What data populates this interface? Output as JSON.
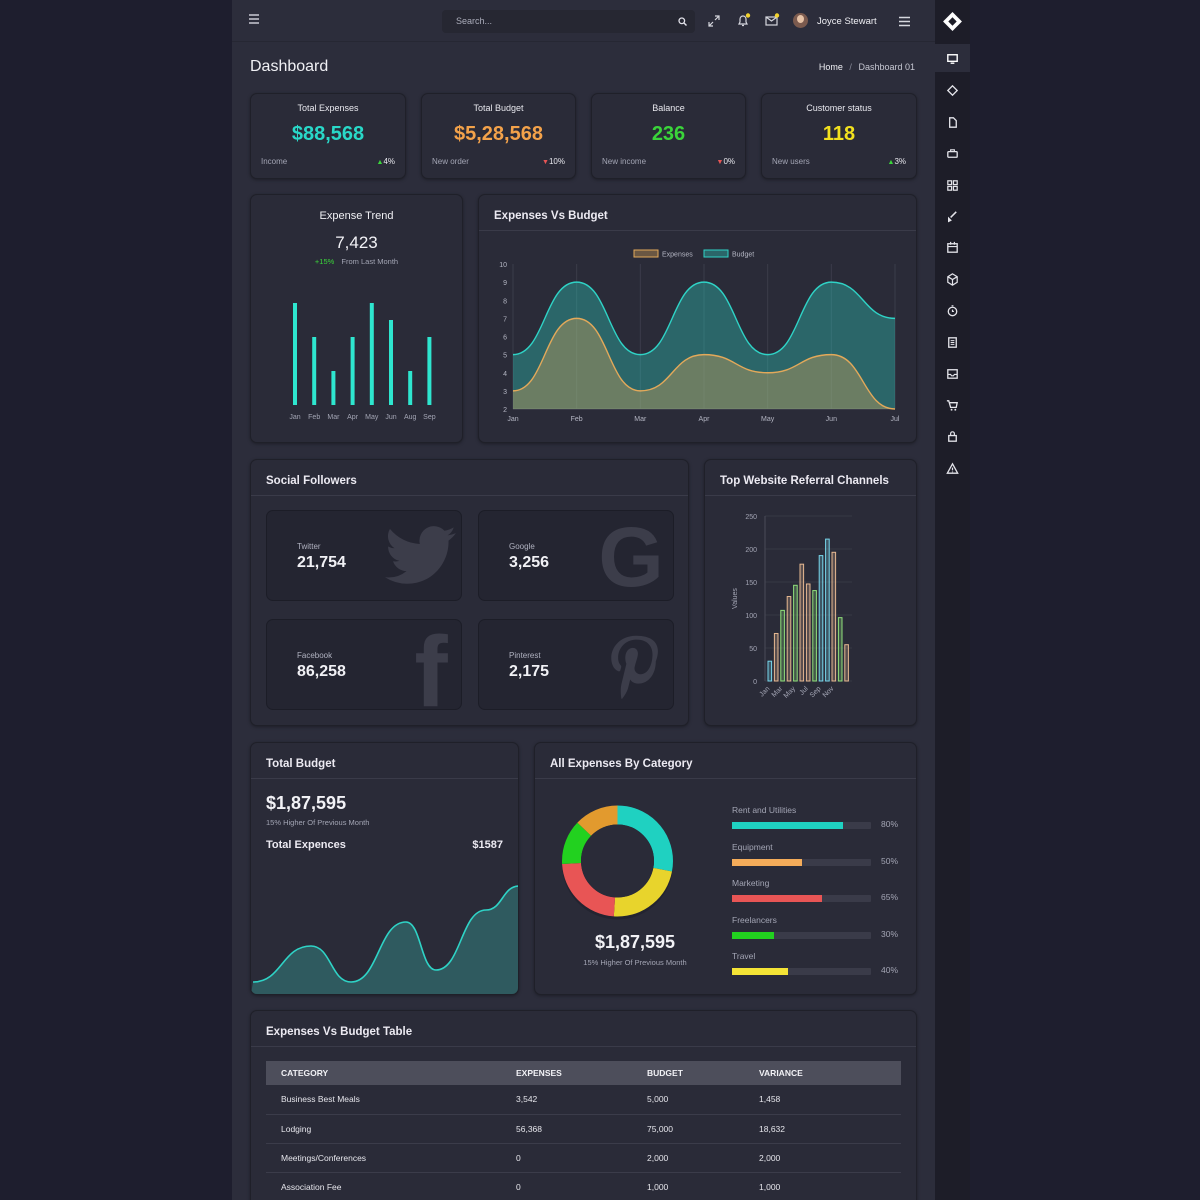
{
  "header": {
    "search_placeholder": "Search...",
    "user_name": "Joyce Stewart"
  },
  "page": {
    "title": "Dashboard",
    "breadcrumb": [
      "Home",
      "/",
      "Dashboard 01"
    ]
  },
  "stats": [
    {
      "label": "Total Expenses",
      "value": "$88,568",
      "color": "#29d8c8",
      "sub": "Income",
      "change": "4%",
      "dir": "up"
    },
    {
      "label": "Total Budget",
      "value": "$5,28,568",
      "color": "#f3a24a",
      "sub": "New order",
      "change": "10%",
      "dir": "down"
    },
    {
      "label": "Balance",
      "value": "236",
      "color": "#3ad43a",
      "sub": "New income",
      "change": "0%",
      "dir": "down"
    },
    {
      "label": "Customer status",
      "value": "118",
      "color": "#f2e11e",
      "sub": "New users",
      "change": "3%",
      "dir": "up"
    }
  ],
  "expense_trend": {
    "title": "Expense Trend",
    "value": "7,423",
    "change": "+15%",
    "change_label": "From Last Month"
  },
  "expenses_vs_budget": {
    "title": "Expenses Vs Budget"
  },
  "social": {
    "title": "Social Followers",
    "items": [
      {
        "name": "Twitter",
        "value": "21,754"
      },
      {
        "name": "Google",
        "value": "3,256"
      },
      {
        "name": "Facebook",
        "value": "86,258"
      },
      {
        "name": "Pinterest",
        "value": "2,175"
      }
    ]
  },
  "referral": {
    "title": "Top Website Referral Channels"
  },
  "total_budget": {
    "title": "Total Budget",
    "value": "$1,87,595",
    "sub": "15% Higher Of Previous Month",
    "exp_label": "Total Expences",
    "exp_value": "$1587"
  },
  "category": {
    "title": "All Expenses By Category",
    "value": "$1,87,595",
    "sub": "15% Higher Of Previous Month",
    "items": [
      {
        "label": "Rent and Utilities",
        "pct": "80%",
        "frac": 0.8,
        "color": "#1fd1c1"
      },
      {
        "label": "Equipment",
        "pct": "50%",
        "frac": 0.5,
        "color": "#f4ac5a"
      },
      {
        "label": "Marketing",
        "pct": "65%",
        "frac": 0.65,
        "color": "#e85555"
      },
      {
        "label": "Freelancers",
        "pct": "30%",
        "frac": 0.3,
        "color": "#22d11f"
      },
      {
        "label": "Travel",
        "pct": "40%",
        "frac": 0.4,
        "color": "#f4e436"
      }
    ]
  },
  "table": {
    "title": "Expenses Vs Budget Table",
    "headers": [
      "CATEGORY",
      "EXPENSES",
      "BUDGET",
      "VARIANCE"
    ],
    "rows": [
      [
        "Business Best Meals",
        "3,542",
        "5,000",
        "1,458"
      ],
      [
        "Lodging",
        "56,368",
        "75,000",
        "18,632"
      ],
      [
        "Meetings/Conferences",
        "0",
        "2,000",
        "2,000"
      ],
      [
        "Association Fee",
        "0",
        "1,000",
        "1,000"
      ]
    ]
  },
  "chart_data": [
    {
      "type": "bar",
      "categories": [
        "Jan",
        "Feb",
        "Mar",
        "Apr",
        "May",
        "Jun",
        "Aug",
        "Sep"
      ],
      "values": [
        6,
        4,
        2,
        4,
        6,
        5,
        2,
        4
      ],
      "color": "#2ee6cf"
    },
    {
      "type": "area",
      "categories": [
        "Jan",
        "Feb",
        "Mar",
        "Apr",
        "May",
        "Jun",
        "Jul"
      ],
      "ylim": [
        2,
        10
      ],
      "yticks": [
        2,
        3,
        4,
        5,
        6,
        7,
        8,
        9,
        10
      ],
      "legend": "top-center",
      "series": [
        {
          "name": "Expenses",
          "color": "#e3a95a",
          "values": [
            3,
            7,
            3,
            5,
            4,
            5,
            2
          ]
        },
        {
          "name": "Budget",
          "color": "#2fd3c6",
          "values": [
            5,
            9,
            5,
            9,
            5,
            9,
            7
          ]
        }
      ]
    },
    {
      "type": "bar",
      "ylabel": "Values",
      "ylim": [
        0,
        250
      ],
      "yticks": [
        0,
        50,
        100,
        150,
        200,
        250
      ],
      "xticks": [
        "Jan",
        "Mar",
        "May",
        "Jul",
        "Sep",
        "Nov"
      ],
      "values": [
        30,
        72,
        107,
        128,
        145,
        177,
        147,
        137,
        190,
        215,
        195,
        96,
        55
      ],
      "colors": [
        "#78d7ec",
        "#e6b891",
        "#90e07b",
        "#e6b891",
        "#90e07b",
        "#e6b891",
        "#e6b891",
        "#90e07b",
        "#78d7ec",
        "#78d7ec",
        "#e6b891",
        "#90e07b",
        "#e6b891"
      ]
    },
    {
      "type": "area",
      "values": [
        1,
        4,
        1,
        6,
        2,
        7,
        9
      ],
      "color": "#2fd3c6"
    },
    {
      "type": "pie",
      "donut": true,
      "labels": [
        "Rent and Utilities",
        "Marketing",
        "Freelancers",
        "Equipment",
        "Travel"
      ],
      "values": [
        28,
        23,
        13,
        13,
        23
      ],
      "colors": [
        "#1fd1c1",
        "#e85555",
        "#22d11f",
        "#e29a2e",
        "#e8d42c"
      ]
    }
  ],
  "colors": {
    "accent": "#2fd3c6",
    "notification_dot": "#f2d22e"
  }
}
